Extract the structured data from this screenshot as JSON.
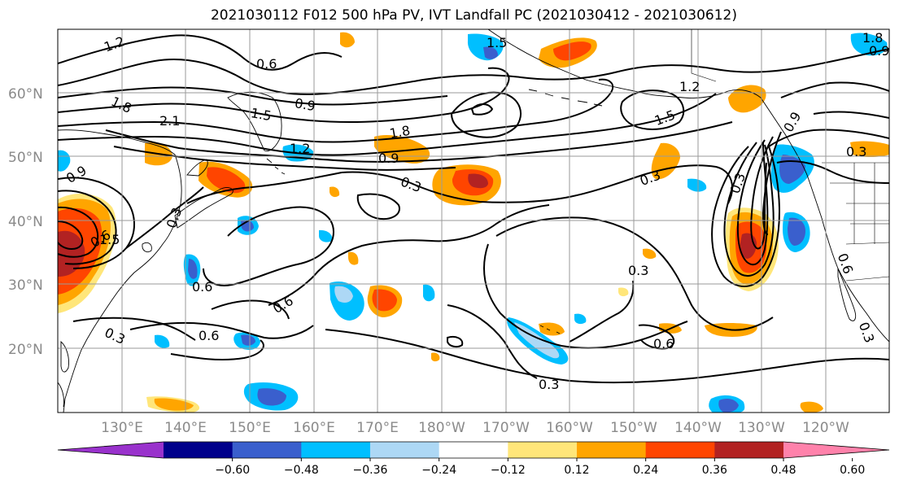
{
  "title": "2021030112 F012 500 hPa PV, IVT Landfall PC (2021030412 - 2021030612)",
  "map": {
    "lat_labels": [
      "60°N",
      "50°N",
      "40°N",
      "30°N",
      "20°N"
    ],
    "lon_labels": [
      "130°E",
      "140°E",
      "150°E",
      "160°E",
      "170°E",
      "180°W",
      "170°W",
      "160°W",
      "150°W",
      "140°W",
      "130°W",
      "120°W"
    ],
    "contour_labels": [
      "1.2",
      "0.6",
      "1.5",
      "1.8",
      "2.1",
      "1.5",
      "0.9",
      "1.2",
      "1.8",
      "0.9",
      "0.3",
      "0.3",
      "1.2",
      "1.5",
      "0.9",
      "0.3",
      "0.3",
      "0.9",
      "0.6",
      "0.6",
      "0.3",
      "0.6",
      "0.6",
      "0.3",
      "0.3",
      "0.6",
      "1.8",
      "0.9",
      "0.6",
      "1.5",
      "0.3",
      "0.3"
    ],
    "colors": {
      "land_contour": "#000000",
      "gridline": "#9a9a9a"
    }
  },
  "colorbar": {
    "tick_labels": [
      "−0.60",
      "−0.48",
      "−0.36",
      "−0.24",
      "−0.12",
      "0.12",
      "0.24",
      "0.36",
      "0.48",
      "0.60"
    ],
    "levels": [
      -0.6,
      -0.48,
      -0.36,
      -0.24,
      -0.12,
      0.12,
      0.24,
      0.36,
      0.48,
      0.6
    ],
    "colors": [
      "#9932cc",
      "#00008b",
      "#3a5fcd",
      "#00bfff",
      "#add8f5",
      "#ffffff",
      "#ffe67a",
      "#ffa500",
      "#ff4500",
      "#b22222",
      "#ff82ab"
    ]
  }
}
